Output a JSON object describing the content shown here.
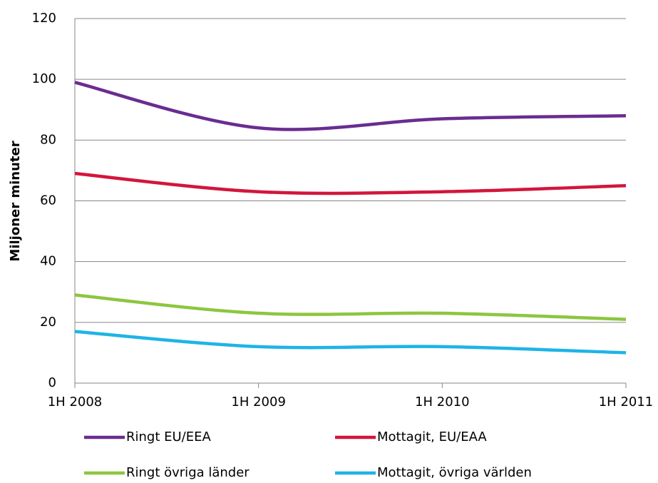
{
  "chart_data": {
    "type": "line",
    "categories": [
      "1H 2008",
      "1H 2009",
      "1H 2010",
      "1H 2011"
    ],
    "series": [
      {
        "name": "Ringt EU/EEA",
        "color": "#6a2c91",
        "values": [
          99,
          84,
          87,
          88
        ]
      },
      {
        "name": "Mottagit, EU/EAA",
        "color": "#d2163c",
        "values": [
          69,
          63,
          63,
          65
        ]
      },
      {
        "name": "Ringt övriga länder",
        "color": "#8cc63f",
        "values": [
          29,
          23,
          23,
          21
        ]
      },
      {
        "name": "Mottagit, övriga världen",
        "color": "#1eb4e6",
        "values": [
          17,
          12,
          12,
          10
        ]
      }
    ],
    "y_label": "Miljoner minuter",
    "ylim": [
      0,
      120
    ],
    "yticks": [
      0,
      20,
      40,
      60,
      80,
      100,
      120
    ],
    "grid": true,
    "smooth": true
  }
}
